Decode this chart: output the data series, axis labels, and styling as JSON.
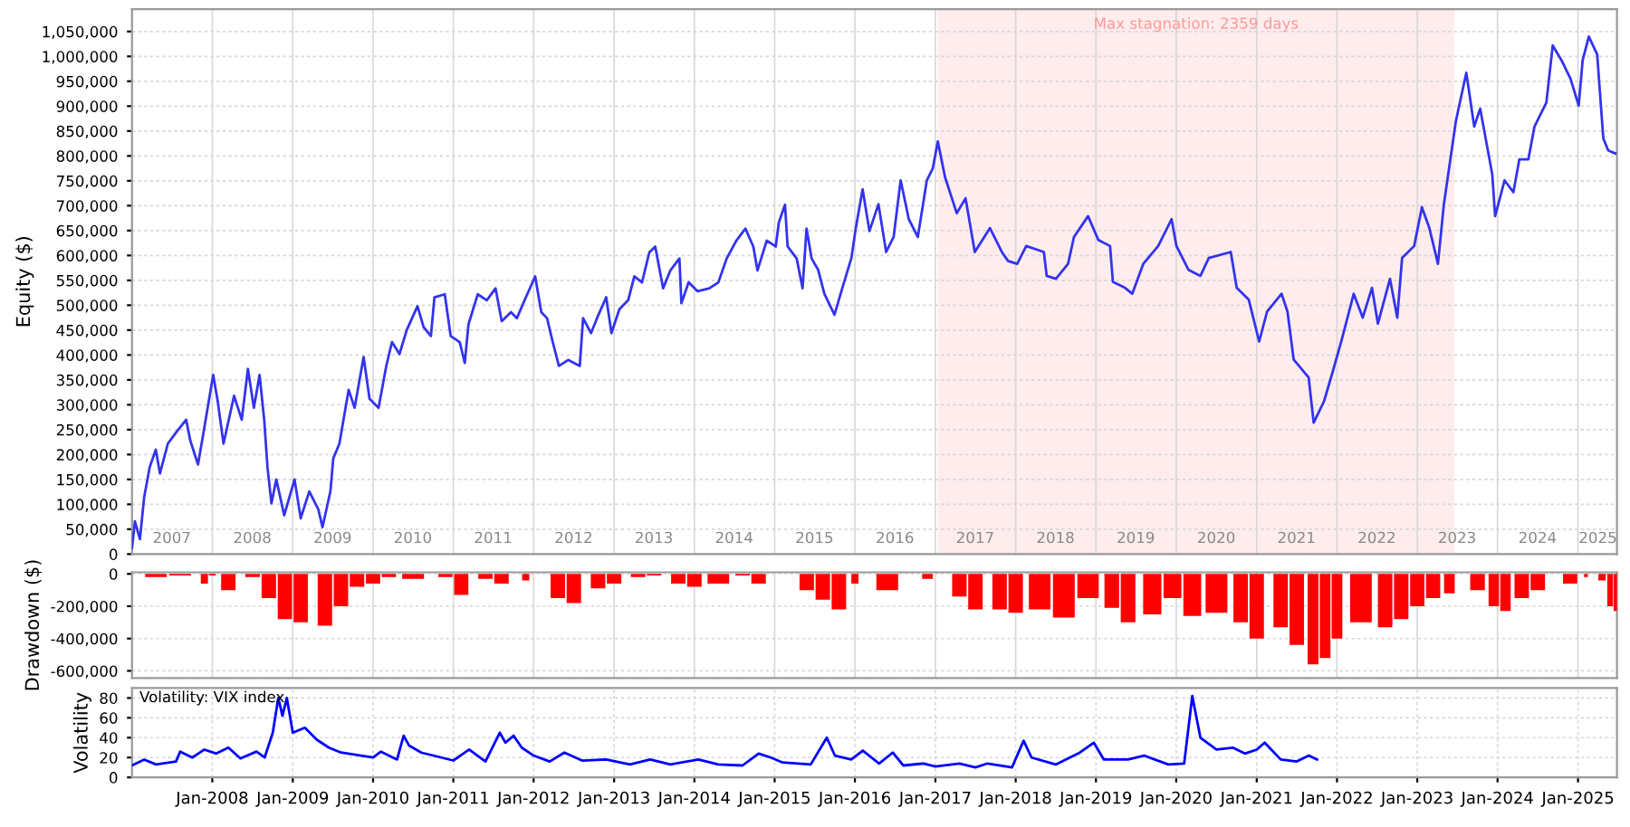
{
  "chart_data": [
    {
      "type": "line",
      "ylabel": "Equity ($)",
      "grid": true,
      "tick_labels": "xy",
      "xlim": [
        "2007-01-01",
        "2025-06-27"
      ],
      "ylim": [
        0,
        1095000
      ],
      "xticks": [
        {
          "value": "2007-07-01",
          "label": "2007"
        },
        {
          "value": "2008-01-01",
          "label": null
        },
        {
          "value": "2008-07-01",
          "label": "2008"
        },
        {
          "value": "2009-01-01",
          "label": null
        },
        {
          "value": "2009-07-01",
          "label": "2009"
        },
        {
          "value": "2010-01-01",
          "label": null
        },
        {
          "value": "2010-07-01",
          "label": "2010"
        },
        {
          "value": "2011-01-01",
          "label": null
        },
        {
          "value": "2011-07-01",
          "label": "2011"
        },
        {
          "value": "2012-01-01",
          "label": null
        },
        {
          "value": "2012-07-01",
          "label": "2012"
        },
        {
          "value": "2013-01-01",
          "label": null
        },
        {
          "value": "2013-07-01",
          "label": "2013"
        },
        {
          "value": "2014-01-01",
          "label": null
        },
        {
          "value": "2014-07-01",
          "label": "2014"
        },
        {
          "value": "2015-01-01",
          "label": null
        },
        {
          "value": "2015-07-01",
          "label": "2015"
        },
        {
          "value": "2016-01-01",
          "label": null
        },
        {
          "value": "2016-07-01",
          "label": "2016"
        },
        {
          "value": "2017-01-01",
          "label": null
        },
        {
          "value": "2017-07-01",
          "label": "2017"
        },
        {
          "value": "2018-01-01",
          "label": null
        },
        {
          "value": "2018-07-01",
          "label": "2018"
        },
        {
          "value": "2019-01-01",
          "label": null
        },
        {
          "value": "2019-07-01",
          "label": "2019"
        },
        {
          "value": "2020-01-01",
          "label": null
        },
        {
          "value": "2020-07-01",
          "label": "2020"
        },
        {
          "value": "2021-01-01",
          "label": null
        },
        {
          "value": "2021-07-01",
          "label": "2021"
        },
        {
          "value": "2022-01-01",
          "label": null
        },
        {
          "value": "2022-07-01",
          "label": "2022"
        },
        {
          "value": "2023-01-01",
          "label": null
        },
        {
          "value": "2023-07-01",
          "label": "2023"
        },
        {
          "value": "2024-01-01",
          "label": null
        },
        {
          "value": "2024-07-01",
          "label": "2024"
        },
        {
          "value": "2025-01-01",
          "label": null
        },
        {
          "value": "2025-04-01",
          "label": "2025"
        }
      ],
      "yticks": [
        {
          "value": 0,
          "label": "0"
        },
        {
          "value": 50000,
          "label": "50,000"
        },
        {
          "value": 100000,
          "label": "100,000"
        },
        {
          "value": 150000,
          "label": "150,000"
        },
        {
          "value": 200000,
          "label": "200,000"
        },
        {
          "value": 250000,
          "label": "250,000"
        },
        {
          "value": 300000,
          "label": "300,000"
        },
        {
          "value": 350000,
          "label": "350,000"
        },
        {
          "value": 400000,
          "label": "400,000"
        },
        {
          "value": 450000,
          "label": "450,000"
        },
        {
          "value": 500000,
          "label": "500,000"
        },
        {
          "value": 550000,
          "label": "550,000"
        },
        {
          "value": 600000,
          "label": "600,000"
        },
        {
          "value": 650000,
          "label": "650,000"
        },
        {
          "value": 700000,
          "label": "700,000"
        },
        {
          "value": 750000,
          "label": "750,000"
        },
        {
          "value": 800000,
          "label": "800,000"
        },
        {
          "value": 850000,
          "label": "850,000"
        },
        {
          "value": 900000,
          "label": "900,000"
        },
        {
          "value": 950000,
          "label": "950,000"
        },
        {
          "value": 1000000,
          "label": "1,000,000"
        },
        {
          "value": 1050000,
          "label": "1,050,000"
        }
      ],
      "bands": [
        {
          "axis": "x",
          "from": "2017-01-12",
          "to": "2023-06-19",
          "label": "Max stagnation: 2359 days",
          "color": "#ffecec"
        }
      ],
      "series": [
        {
          "color": "#3333ee",
          "x": [
            "2007-01-01",
            "2007-01-14",
            "2007-02-06",
            "2007-02-25",
            "2007-03-22",
            "2007-04-19",
            "2007-05-08",
            "2007-06-13",
            "2007-07-23",
            "2007-09-04",
            "2007-09-23",
            "2007-10-28",
            "2007-11-25",
            "2008-01-05",
            "2008-01-26",
            "2008-02-21",
            "2008-04-09",
            "2008-05-14",
            "2008-06-11",
            "2008-07-08",
            "2008-08-03",
            "2008-08-24",
            "2008-09-08",
            "2008-09-26",
            "2008-10-18",
            "2008-11-23",
            "2009-01-09",
            "2009-02-06",
            "2009-03-17",
            "2009-04-27",
            "2009-05-16",
            "2009-06-21",
            "2009-07-04",
            "2009-08-01",
            "2009-09-12",
            "2009-10-09",
            "2009-11-19",
            "2009-12-16",
            "2010-01-26",
            "2010-03-02",
            "2010-03-28",
            "2010-05-01",
            "2010-06-03",
            "2010-07-22",
            "2010-08-19",
            "2010-09-21",
            "2010-10-07",
            "2010-11-23",
            "2010-12-20",
            "2011-01-30",
            "2011-02-22",
            "2011-03-11",
            "2011-04-22",
            "2011-06-02",
            "2011-07-12",
            "2011-08-09",
            "2011-09-20",
            "2011-10-17",
            "2011-11-27",
            "2012-01-08",
            "2012-02-05",
            "2012-03-02",
            "2012-03-28",
            "2012-04-25",
            "2012-06-06",
            "2012-07-29",
            "2012-08-13",
            "2012-09-18",
            "2012-10-21",
            "2012-11-26",
            "2012-12-20",
            "2013-01-25",
            "2013-03-06",
            "2013-04-03",
            "2013-05-08",
            "2013-06-10",
            "2013-07-07",
            "2013-08-12",
            "2013-09-14",
            "2013-10-25",
            "2013-11-03",
            "2013-12-06",
            "2014-01-16",
            "2014-03-10",
            "2014-04-20",
            "2014-05-28",
            "2014-07-11",
            "2014-08-21",
            "2014-09-26",
            "2014-10-15",
            "2014-11-26",
            "2015-01-06",
            "2015-01-20",
            "2015-02-17",
            "2015-03-01",
            "2015-04-11",
            "2015-05-08",
            "2015-05-26",
            "2015-06-18",
            "2015-07-18",
            "2015-08-15",
            "2015-09-30",
            "2015-11-05",
            "2015-12-16",
            "2016-01-05",
            "2016-02-05",
            "2016-03-07",
            "2016-04-17",
            "2016-05-22",
            "2016-06-25",
            "2016-07-27",
            "2016-09-02",
            "2016-10-13",
            "2016-11-23",
            "2016-12-20",
            "2017-01-12",
            "2017-02-14",
            "2017-04-08",
            "2017-05-18",
            "2017-06-29",
            "2017-09-06",
            "2017-10-30",
            "2017-11-27",
            "2018-01-08",
            "2018-02-18",
            "2018-05-09",
            "2018-05-22",
            "2018-07-03",
            "2018-08-27",
            "2018-09-23",
            "2018-11-26",
            "2019-01-12",
            "2019-03-06",
            "2019-03-19",
            "2019-05-13",
            "2019-06-15",
            "2019-08-04",
            "2019-10-11",
            "2019-12-11",
            "2020-01-02",
            "2020-02-26",
            "2020-04-20",
            "2020-05-28",
            "2020-09-05",
            "2020-10-02",
            "2020-11-26",
            "2021-01-12",
            "2021-02-17",
            "2021-04-24",
            "2021-05-21",
            "2021-06-18",
            "2021-08-25",
            "2021-09-17",
            "2021-11-03",
            "2021-12-13",
            "2022-01-24",
            "2022-03-18",
            "2022-04-28",
            "2022-06-09",
            "2022-07-06",
            "2022-08-30",
            "2022-10-02",
            "2022-10-24",
            "2022-12-18",
            "2023-01-22",
            "2023-02-25",
            "2023-04-05",
            "2023-05-02",
            "2023-06-26",
            "2023-08-12",
            "2023-09-17",
            "2023-10-14",
            "2023-12-08",
            "2023-12-21",
            "2024-02-02",
            "2024-03-13",
            "2024-04-09",
            "2024-05-20",
            "2024-06-17",
            "2024-08-10",
            "2024-09-08",
            "2024-10-18",
            "2024-11-28",
            "2025-01-04",
            "2025-01-22",
            "2025-02-19",
            "2025-03-29",
            "2025-04-26",
            "2025-05-18",
            "2025-06-20"
          ],
          "values": [
            12000,
            66000,
            30000,
            114000,
            174000,
            210000,
            162000,
            222000,
            246000,
            270000,
            228000,
            180000,
            252000,
            360000,
            306000,
            222000,
            318000,
            270000,
            372000,
            294000,
            360000,
            270000,
            174000,
            102000,
            150000,
            78000,
            150000,
            72000,
            126000,
            90000,
            54000,
            126000,
            192000,
            222000,
            330000,
            294000,
            396000,
            312000,
            294000,
            378000,
            426000,
            402000,
            450000,
            498000,
            456000,
            438000,
            516000,
            522000,
            438000,
            426000,
            384000,
            462000,
            522000,
            510000,
            534000,
            468000,
            486000,
            474000,
            516000,
            558000,
            486000,
            474000,
            426000,
            378000,
            390000,
            378000,
            474000,
            444000,
            480000,
            516000,
            444000,
            492000,
            510000,
            558000,
            546000,
            606000,
            618000,
            534000,
            570000,
            594000,
            504000,
            546000,
            528000,
            534000,
            546000,
            594000,
            630000,
            654000,
            618000,
            570000,
            630000,
            618000,
            666000,
            702000,
            618000,
            594000,
            534000,
            654000,
            594000,
            571000,
            523000,
            481000,
            535000,
            595000,
            655000,
            733000,
            649000,
            703000,
            607000,
            637000,
            751000,
            673000,
            637000,
            751000,
            775000,
            829000,
            757000,
            685000,
            715000,
            607000,
            655000,
            607000,
            589000,
            583000,
            619000,
            607000,
            559000,
            553000,
            583000,
            637000,
            679000,
            631000,
            619000,
            547000,
            535000,
            523000,
            583000,
            619000,
            673000,
            619000,
            571000,
            559000,
            595000,
            607000,
            535000,
            511000,
            427000,
            487000,
            523000,
            487000,
            391000,
            355000,
            264000,
            307000,
            367000,
            433000,
            523000,
            475000,
            535000,
            463000,
            553000,
            475000,
            595000,
            619000,
            697000,
            655000,
            583000,
            703000,
            871000,
            967000,
            859000,
            895000,
            763000,
            679000,
            751000,
            727000,
            793000,
            793000,
            859000,
            907000,
            1022000,
            992000,
            955000,
            901000,
            992000,
            1040000,
            1004000,
            835000,
            811000,
            805000
          ]
        }
      ]
    },
    {
      "type": "bar",
      "ylabel": "Drawdown ($)",
      "grid": true,
      "tick_labels": "y",
      "xlim": [
        "2007-01-01",
        "2025-06-27"
      ],
      "ylim": [
        -645000,
        10000
      ],
      "xticks": [
        {
          "value": "2008-01-01",
          "label": null
        },
        {
          "value": "2009-01-01",
          "label": null
        },
        {
          "value": "2010-01-01",
          "label": null
        },
        {
          "value": "2011-01-01",
          "label": null
        },
        {
          "value": "2012-01-01",
          "label": null
        },
        {
          "value": "2013-01-01",
          "label": null
        },
        {
          "value": "2014-01-01",
          "label": null
        },
        {
          "value": "2015-01-01",
          "label": null
        },
        {
          "value": "2016-01-01",
          "label": null
        },
        {
          "value": "2017-01-01",
          "label": null
        },
        {
          "value": "2018-01-01",
          "label": null
        },
        {
          "value": "2019-01-01",
          "label": null
        },
        {
          "value": "2020-01-01",
          "label": null
        },
        {
          "value": "2021-01-01",
          "label": null
        },
        {
          "value": "2022-01-01",
          "label": null
        },
        {
          "value": "2023-01-01",
          "label": null
        },
        {
          "value": "2024-01-01",
          "label": null
        },
        {
          "value": "2025-01-01",
          "label": null
        }
      ],
      "yticks": [
        {
          "value": -600000,
          "label": "-600,000"
        },
        {
          "value": -400000,
          "label": "-400,000"
        },
        {
          "value": -200000,
          "label": "-200,000"
        },
        {
          "value": 0,
          "label": "0"
        }
      ],
      "series": [
        {
          "color": "#ff0000",
          "x": [
            "2007-01-01",
            "2007-04-20",
            "2007-08-08",
            "2007-11-26",
            "2008-01-01",
            "2008-03-14",
            "2008-07-02",
            "2008-09-14",
            "2008-11-26",
            "2009-02-06",
            "2009-05-27",
            "2009-08-08",
            "2009-10-20",
            "2010-01-01",
            "2010-03-14",
            "2010-07-02",
            "2010-11-26",
            "2011-02-06",
            "2011-05-27",
            "2011-08-08",
            "2011-11-26",
            "2012-01-01",
            "2012-04-20",
            "2012-07-02",
            "2012-10-20",
            "2013-01-01",
            "2013-04-20",
            "2013-07-02",
            "2013-10-20",
            "2014-01-01",
            "2014-04-20",
            "2014-08-08",
            "2014-10-20",
            "2015-02-06",
            "2015-05-27",
            "2015-08-08",
            "2015-10-20",
            "2016-01-01",
            "2016-02-06",
            "2016-05-27",
            "2016-09-14",
            "2016-11-26",
            "2017-01-19",
            "2017-04-20",
            "2017-07-02",
            "2017-10-20",
            "2018-01-01",
            "2018-04-20",
            "2018-08-08",
            "2018-11-26",
            "2019-03-14",
            "2019-05-27",
            "2019-09-14",
            "2019-12-15",
            "2020-03-14",
            "2020-07-02",
            "2020-10-20",
            "2021-01-01",
            "2021-04-20",
            "2021-07-02",
            "2021-09-14",
            "2021-11-08",
            "2022-01-01",
            "2022-04-20",
            "2022-08-08",
            "2022-10-20",
            "2023-01-01",
            "2023-03-14",
            "2023-05-27",
            "2023-07-20",
            "2023-10-02",
            "2023-12-15",
            "2024-02-06",
            "2024-04-20",
            "2024-07-02",
            "2024-09-14",
            "2024-11-26",
            "2025-02-06",
            "2025-02-25",
            "2025-04-20",
            "2025-05-27",
            "2025-06-25"
          ],
          "values": [
            0,
            -20000,
            -10000,
            -60000,
            -10000,
            -100000,
            -20000,
            -150000,
            -280000,
            -300000,
            -320000,
            -200000,
            -80000,
            -60000,
            -20000,
            -30000,
            -20000,
            -130000,
            -30000,
            -60000,
            -40000,
            0,
            -150000,
            -180000,
            -90000,
            -60000,
            -20000,
            -10000,
            -60000,
            -80000,
            -60000,
            -10000,
            -60000,
            0,
            -100000,
            -160000,
            -220000,
            -60000,
            0,
            -100000,
            0,
            -30000,
            0,
            -140000,
            -220000,
            -220000,
            -240000,
            -220000,
            -270000,
            -150000,
            -210000,
            -300000,
            -250000,
            -150000,
            -260000,
            -240000,
            -300000,
            -400000,
            -330000,
            -440000,
            -560000,
            -520000,
            -400000,
            -300000,
            -330000,
            -280000,
            -200000,
            -150000,
            -120000,
            0,
            -100000,
            -200000,
            -230000,
            -150000,
            -100000,
            0,
            -60000,
            -20000,
            0,
            -40000,
            -200000,
            -230000
          ]
        }
      ]
    },
    {
      "type": "line",
      "ylabel": "Volatility",
      "grid": true,
      "annotations": [
        "Volatility: VIX index"
      ],
      "xlim": [
        "2007-01-01",
        "2025-06-27"
      ],
      "ylim": [
        0,
        90
      ],
      "xticks": [
        {
          "value": "2008-01-01",
          "label": "Jan-2008"
        },
        {
          "value": "2009-01-01",
          "label": "Jan-2009"
        },
        {
          "value": "2010-01-01",
          "label": "Jan-2010"
        },
        {
          "value": "2011-01-01",
          "label": "Jan-2011"
        },
        {
          "value": "2012-01-01",
          "label": "Jan-2012"
        },
        {
          "value": "2013-01-01",
          "label": "Jan-2013"
        },
        {
          "value": "2014-01-01",
          "label": "Jan-2014"
        },
        {
          "value": "2015-01-01",
          "label": "Jan-2015"
        },
        {
          "value": "2016-01-01",
          "label": "Jan-2016"
        },
        {
          "value": "2017-01-01",
          "label": "Jan-2017"
        },
        {
          "value": "2018-01-01",
          "label": "Jan-2018"
        },
        {
          "value": "2019-01-01",
          "label": "Jan-2019"
        },
        {
          "value": "2020-01-01",
          "label": "Jan-2020"
        },
        {
          "value": "2021-01-01",
          "label": "Jan-2021"
        },
        {
          "value": "2022-01-01",
          "label": "Jan-2022"
        },
        {
          "value": "2023-01-01",
          "label": "Jan-2023"
        },
        {
          "value": "2024-01-01",
          "label": "Jan-2024"
        },
        {
          "value": "2025-01-01",
          "label": "Jan-2025"
        }
      ],
      "yticks": [
        0,
        20,
        40,
        60,
        80
      ],
      "series": [
        {
          "color": "#0000ff",
          "x": [
            "2007-01-01",
            "2007-02-25",
            "2007-04-20",
            "2007-07-20",
            "2007-08-08",
            "2007-10-02",
            "2007-11-26",
            "2008-01-19",
            "2008-03-14",
            "2008-05-08",
            "2008-07-20",
            "2008-08-26",
            "2008-10-02",
            "2008-10-27",
            "2008-11-15",
            "2008-12-05",
            "2009-01-01",
            "2009-02-25",
            "2009-04-20",
            "2009-06-14",
            "2009-08-08",
            "2009-11-08",
            "2010-01-01",
            "2010-02-06",
            "2010-04-20",
            "2010-05-20",
            "2010-06-14",
            "2010-08-08",
            "2010-11-08",
            "2011-01-01",
            "2011-03-14",
            "2011-05-27",
            "2011-07-31",
            "2011-08-26",
            "2011-10-02",
            "2011-11-08",
            "2012-01-01",
            "2012-03-14",
            "2012-05-20",
            "2012-08-08",
            "2012-11-26",
            "2013-03-14",
            "2013-06-14",
            "2013-09-14",
            "2014-01-19",
            "2014-04-20",
            "2014-08-08",
            "2014-10-20",
            "2014-12-15",
            "2015-02-06",
            "2015-06-14",
            "2015-08-26",
            "2015-10-02",
            "2015-12-15",
            "2016-02-06",
            "2016-04-20",
            "2016-06-21",
            "2016-08-08",
            "2016-11-08",
            "2017-01-01",
            "2017-04-20",
            "2017-07-02",
            "2017-08-26",
            "2017-12-15",
            "2018-02-06",
            "2018-03-14",
            "2018-07-02",
            "2018-10-20",
            "2018-12-22",
            "2019-02-06",
            "2019-05-27",
            "2019-08-08",
            "2019-11-26",
            "2020-02-06",
            "2020-03-14",
            "2020-04-20",
            "2020-07-02",
            "2020-09-14",
            "2020-11-08",
            "2021-01-01",
            "2021-02-06",
            "2021-04-20",
            "2021-07-02",
            "2021-08-26",
            "2021-10-02"
          ],
          "values": [
            12,
            18,
            13,
            16,
            26,
            20,
            28,
            24,
            30,
            19,
            26,
            20,
            45,
            80,
            62,
            80,
            45,
            50,
            38,
            30,
            25,
            22,
            20,
            26,
            18,
            42,
            32,
            25,
            20,
            17,
            28,
            16,
            45,
            35,
            42,
            30,
            22,
            16,
            25,
            17,
            18,
            13,
            18,
            13,
            18,
            13,
            12,
            24,
            20,
            15,
            13,
            40,
            22,
            18,
            27,
            14,
            25,
            12,
            14,
            11,
            14,
            10,
            14,
            10,
            37,
            20,
            13,
            25,
            35,
            18,
            18,
            22,
            13,
            14,
            82,
            40,
            28,
            30,
            24,
            28,
            35,
            18,
            16,
            22,
            18
          ]
        }
      ]
    }
  ]
}
